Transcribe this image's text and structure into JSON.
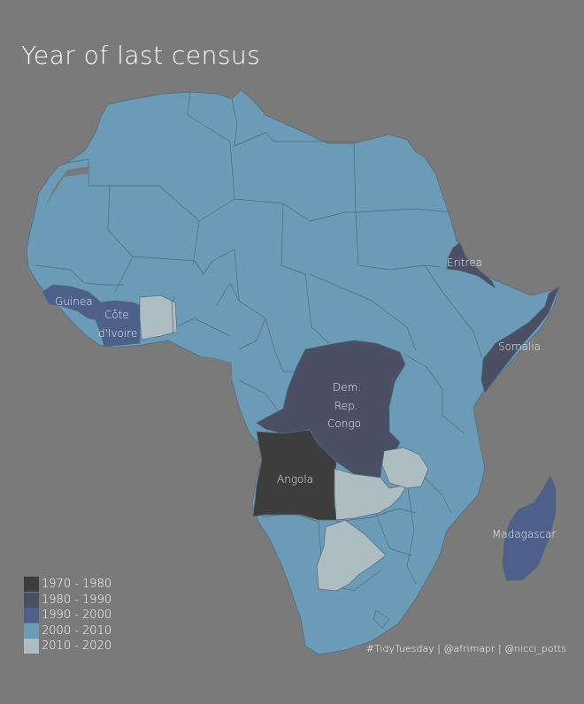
{
  "title": "Year of last census",
  "legend": [
    {
      "label": "1970 - 1980",
      "color": "#3d3d3d"
    },
    {
      "label": "1980 - 1990",
      "color": "#4a4f63"
    },
    {
      "label": "1990 - 2000",
      "color": "#4e6089"
    },
    {
      "label": "2000 - 2010",
      "color": "#6b9bb6"
    },
    {
      "label": "2010 - 2020",
      "color": "#aebdc2"
    }
  ],
  "country_labels": {
    "guinea": "Guinea",
    "cote_divoire_1": "Côte",
    "cote_divoire_2": "d'Ivoire",
    "eritrea": "Eritrea",
    "somalia": "Somalia",
    "drc_1": "Dem.",
    "drc_2": "Rep.",
    "drc_3": "Congo",
    "angola": "Angola",
    "madagascar": "Madagascar"
  },
  "caption": "#TidyTuesday | @afrimapr | @nicci_potts",
  "colors": {
    "background": "#7a7a7a",
    "border": "#4f6b7a"
  }
}
